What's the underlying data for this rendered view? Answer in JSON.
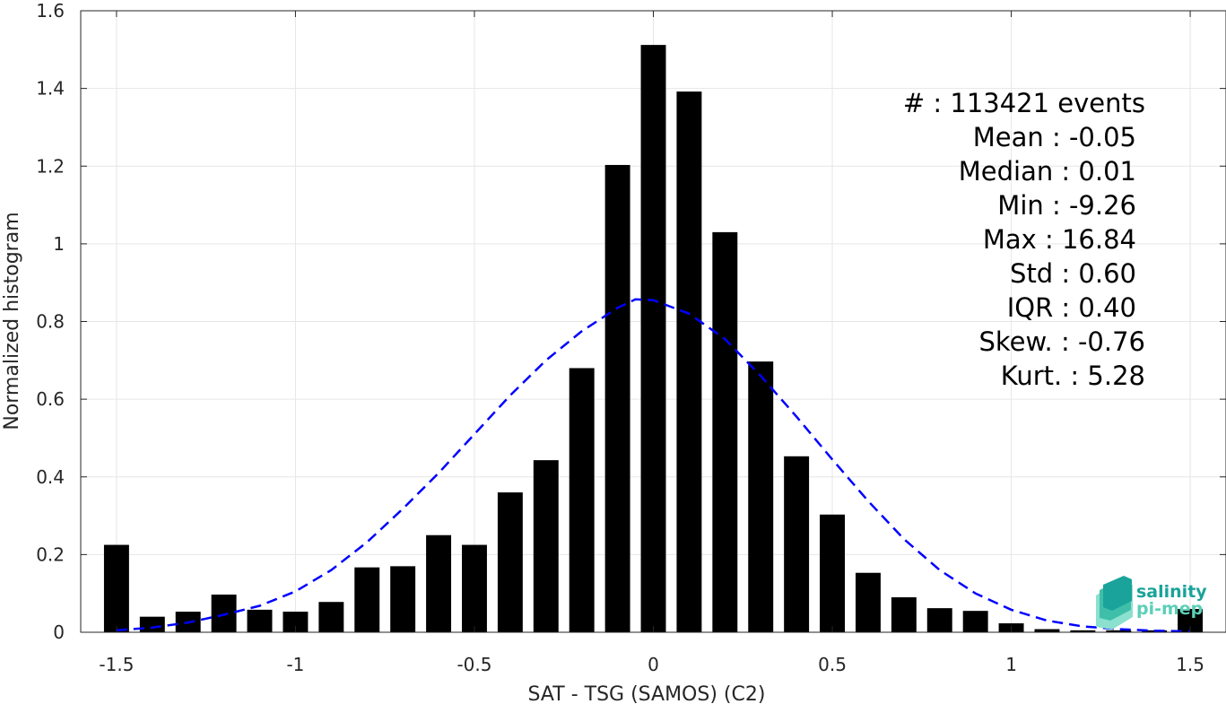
{
  "colors": {
    "bar": "#000000",
    "fit_curve": "#0000ff",
    "grid": "#e6e6e6",
    "axes": "#262626",
    "logo_primary": "#1aa39a",
    "logo_secondary": "#5ccfb7"
  },
  "chart_data": {
    "type": "bar",
    "xlabel": "SAT - TSG (SAMOS) (C2)",
    "ylabel": "Normalized histogram",
    "xlim": [
      -1.6,
      1.6
    ],
    "ylim": [
      0,
      1.6
    ],
    "grid": true,
    "x_ticks": [
      -1.5,
      -1,
      -0.5,
      0,
      0.5,
      1,
      1.5
    ],
    "x_tick_labels": [
      "-1.5",
      "-1",
      "-0.5",
      "0",
      "0.5",
      "1",
      "1.5"
    ],
    "y_ticks": [
      0,
      0.2,
      0.4,
      0.6,
      0.8,
      1,
      1.2,
      1.4,
      1.6
    ],
    "y_tick_labels": [
      "0",
      "0.2",
      "0.4",
      "0.6",
      "0.8",
      "1",
      "1.2",
      "1.4",
      "1.6"
    ],
    "bar_width": 0.07,
    "series": [
      {
        "kind": "histogram",
        "x": [
          -1.5,
          -1.4,
          -1.3,
          -1.2,
          -1.1,
          -1.0,
          -0.9,
          -0.8,
          -0.7,
          -0.6,
          -0.5,
          -0.4,
          -0.3,
          -0.2,
          -0.1,
          0.0,
          0.1,
          0.2,
          0.3,
          0.4,
          0.5,
          0.6,
          0.7,
          0.8,
          0.9,
          1.0,
          1.1,
          1.2,
          1.3,
          1.4,
          1.5
        ],
        "values": [
          0.225,
          0.04,
          0.053,
          0.097,
          0.058,
          0.053,
          0.078,
          0.167,
          0.17,
          0.25,
          0.225,
          0.36,
          0.443,
          0.68,
          1.203,
          1.512,
          1.392,
          1.03,
          0.697,
          0.453,
          0.303,
          0.153,
          0.09,
          0.062,
          0.055,
          0.023,
          0.008,
          0.005,
          0.005,
          0.005,
          0.06
        ]
      },
      {
        "kind": "fit",
        "style": "dashed",
        "x": [
          -1.5,
          -1.4,
          -1.3,
          -1.2,
          -1.1,
          -1.0,
          -0.9,
          -0.8,
          -0.7,
          -0.6,
          -0.5,
          -0.4,
          -0.3,
          -0.2,
          -0.1,
          -0.05,
          0.0,
          0.1,
          0.2,
          0.3,
          0.4,
          0.5,
          0.6,
          0.7,
          0.8,
          0.9,
          1.0,
          1.1,
          1.2,
          1.3,
          1.4,
          1.5
        ],
        "values": [
          0.005,
          0.012,
          0.025,
          0.045,
          0.068,
          0.105,
          0.16,
          0.232,
          0.318,
          0.41,
          0.51,
          0.61,
          0.7,
          0.775,
          0.835,
          0.857,
          0.855,
          0.82,
          0.755,
          0.66,
          0.555,
          0.445,
          0.338,
          0.24,
          0.16,
          0.1,
          0.058,
          0.03,
          0.015,
          0.008,
          0.004,
          0.002
        ]
      }
    ],
    "annotations": [
      {
        "label": "#  : 113421 events"
      },
      {
        "label": "Mean : -0.05"
      },
      {
        "label": "Median : 0.01"
      },
      {
        "label": "Min : -9.26"
      },
      {
        "label": "Max : 16.84"
      },
      {
        "label": "Std : 0.60"
      },
      {
        "label": "IQR : 0.40"
      },
      {
        "label": "Skew. : -0.76"
      },
      {
        "label": "Kurt. : 5.28"
      }
    ]
  },
  "logo": {
    "line1": "salinity",
    "line2": "pi-mep"
  }
}
